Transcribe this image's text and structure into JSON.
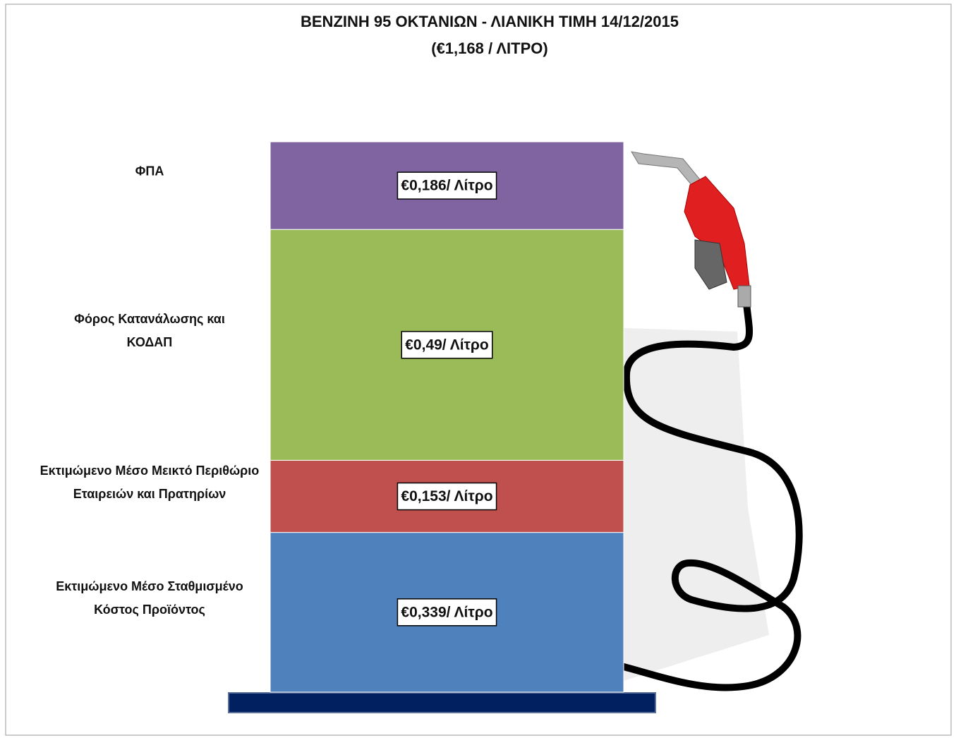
{
  "chart_data": {
    "type": "bar",
    "stacked": true,
    "title": "ΒΕΝΖΙΝΗ 95 ΟΚΤΑΝΙΩΝ - ΛΙΑΝΙΚΗ ΤΙΜΗ 14/12/2015",
    "subtitle": "(€1,168 / ΛΙΤΡΟ)",
    "categories": [
      "Εκτιμώμενο Μέσο Σταθμισμένο Κόστος Προϊόντος",
      "Εκτιμώμενο Μέσο Μεικτό Περιθώριο Εταιρειών και Πρατηρίων",
      "Φόρος Κατανάλωσης και ΚΟΔΑΠ",
      "ΦΠΑ"
    ],
    "values": [
      0.339,
      0.153,
      0.49,
      0.186
    ],
    "value_labels": [
      "€0,339/ Λίτρο",
      "€0,153/ Λίτρο",
      "€0,49/ Λίτρο",
      "€0,186/ Λίτρο"
    ],
    "colors": [
      "#4f81bd",
      "#c0504d",
      "#9bbb59",
      "#8064a2"
    ]
  }
}
